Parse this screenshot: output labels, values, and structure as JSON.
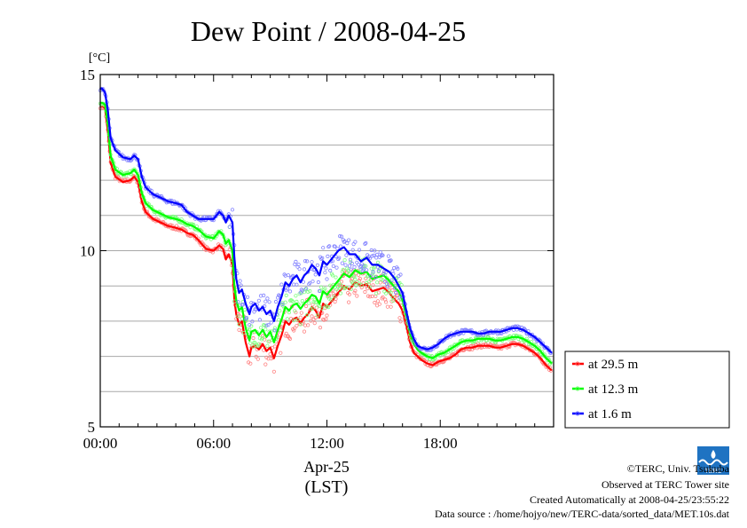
{
  "chart_data": {
    "type": "line",
    "title": "Dew Point / 2008-04-25",
    "ylabel": "[°C]",
    "xlabel_date": "Apr-25",
    "xlabel_tz": "(LST)",
    "ylim": [
      5,
      15
    ],
    "xlim": [
      0,
      24
    ],
    "y_ticks": [
      5,
      10,
      15
    ],
    "y_tick_labels": [
      "5",
      "10",
      "15"
    ],
    "y_grid": [
      6,
      7,
      8,
      9,
      11,
      12,
      13,
      14
    ],
    "x_ticks": [
      0,
      6,
      12,
      18
    ],
    "x_tick_labels": [
      "00:00",
      "06:00",
      "12:00",
      "18:00"
    ],
    "grid": true,
    "legend_position": "right",
    "series": [
      {
        "name": "at 29.5 m",
        "color": "#ff0000",
        "x": [
          0,
          0.1,
          0.25,
          0.4,
          0.55,
          0.8,
          1.2,
          1.6,
          1.8,
          2.0,
          2.2,
          2.4,
          2.8,
          3.2,
          3.6,
          4.0,
          4.3,
          4.6,
          4.9,
          5.2,
          5.6,
          6.0,
          6.3,
          6.5,
          6.65,
          6.8,
          6.9,
          7.0,
          7.1,
          7.2,
          7.35,
          7.5,
          7.7,
          7.9,
          8.0,
          8.2,
          8.4,
          8.6,
          8.8,
          9.0,
          9.2,
          9.4,
          9.6,
          9.8,
          10.0,
          10.2,
          10.4,
          10.6,
          10.8,
          11.0,
          11.2,
          11.4,
          11.6,
          11.8,
          12.0,
          12.3,
          12.6,
          12.9,
          13.2,
          13.5,
          13.8,
          14.1,
          14.4,
          14.7,
          15.0,
          15.3,
          15.6,
          15.8,
          16.0,
          16.2,
          16.4,
          16.6,
          16.8,
          17.0,
          17.3,
          17.6,
          17.9,
          18.2,
          18.5,
          18.8,
          19.1,
          19.4,
          19.7,
          20.0,
          20.3,
          20.6,
          20.9,
          21.2,
          21.5,
          21.8,
          22.1,
          22.4,
          22.7,
          23.0,
          23.3,
          23.6,
          23.9
        ],
        "values": [
          14.1,
          14.1,
          14.05,
          13.4,
          12.5,
          12.1,
          11.95,
          12.0,
          12.1,
          11.95,
          11.4,
          11.1,
          10.9,
          10.8,
          10.7,
          10.65,
          10.6,
          10.5,
          10.45,
          10.3,
          10.05,
          10.0,
          10.15,
          10.05,
          9.75,
          9.9,
          9.75,
          9.6,
          8.6,
          8.2,
          7.9,
          8.0,
          7.4,
          7.0,
          7.25,
          7.3,
          7.2,
          7.35,
          7.15,
          7.25,
          6.95,
          7.3,
          7.6,
          8.0,
          7.9,
          8.05,
          8.1,
          7.95,
          8.1,
          8.2,
          8.4,
          8.3,
          8.1,
          8.5,
          8.4,
          8.6,
          8.8,
          9.0,
          8.9,
          9.1,
          9.0,
          9.05,
          8.85,
          8.9,
          8.95,
          8.8,
          8.6,
          8.5,
          8.3,
          7.9,
          7.4,
          7.1,
          7.0,
          6.9,
          6.8,
          6.75,
          6.85,
          6.9,
          6.95,
          7.05,
          7.2,
          7.25,
          7.25,
          7.3,
          7.3,
          7.3,
          7.25,
          7.25,
          7.3,
          7.35,
          7.35,
          7.3,
          7.2,
          7.1,
          6.95,
          6.75,
          6.6
        ]
      },
      {
        "name": "at 12.3 m",
        "color": "#00ff00",
        "x": [
          0,
          0.1,
          0.25,
          0.4,
          0.55,
          0.8,
          1.2,
          1.6,
          1.8,
          2.0,
          2.2,
          2.4,
          2.8,
          3.2,
          3.6,
          4.0,
          4.3,
          4.6,
          4.9,
          5.2,
          5.6,
          6.0,
          6.3,
          6.5,
          6.65,
          6.8,
          6.9,
          7.0,
          7.1,
          7.2,
          7.35,
          7.5,
          7.7,
          7.9,
          8.0,
          8.2,
          8.4,
          8.6,
          8.8,
          9.0,
          9.2,
          9.4,
          9.6,
          9.8,
          10.0,
          10.2,
          10.4,
          10.6,
          10.8,
          11.0,
          11.2,
          11.4,
          11.6,
          11.8,
          12.0,
          12.3,
          12.6,
          12.9,
          13.2,
          13.5,
          13.8,
          14.1,
          14.4,
          14.7,
          15.0,
          15.3,
          15.6,
          15.8,
          16.0,
          16.2,
          16.4,
          16.6,
          16.8,
          17.0,
          17.3,
          17.6,
          17.9,
          18.2,
          18.5,
          18.8,
          19.1,
          19.4,
          19.7,
          20.0,
          20.3,
          20.6,
          20.9,
          21.2,
          21.5,
          21.8,
          22.1,
          22.4,
          22.7,
          23.0,
          23.3,
          23.6,
          23.9
        ],
        "values": [
          14.2,
          14.2,
          14.15,
          13.6,
          12.7,
          12.3,
          12.15,
          12.2,
          12.3,
          12.15,
          11.65,
          11.35,
          11.15,
          11.05,
          10.95,
          10.9,
          10.85,
          10.75,
          10.7,
          10.6,
          10.4,
          10.35,
          10.55,
          10.45,
          10.2,
          10.3,
          10.15,
          10.0,
          9.0,
          8.6,
          8.3,
          8.4,
          7.8,
          7.45,
          7.7,
          7.75,
          7.6,
          7.75,
          7.55,
          7.7,
          7.4,
          7.75,
          8.05,
          8.4,
          8.3,
          8.45,
          8.5,
          8.35,
          8.5,
          8.6,
          8.75,
          8.7,
          8.5,
          8.85,
          8.75,
          8.95,
          9.15,
          9.35,
          9.25,
          9.45,
          9.35,
          9.4,
          9.2,
          9.25,
          9.3,
          9.15,
          8.95,
          8.85,
          8.6,
          8.15,
          7.65,
          7.35,
          7.2,
          7.1,
          7.0,
          6.95,
          7.05,
          7.1,
          7.2,
          7.3,
          7.4,
          7.45,
          7.45,
          7.5,
          7.5,
          7.5,
          7.45,
          7.45,
          7.5,
          7.55,
          7.55,
          7.5,
          7.4,
          7.3,
          7.15,
          6.95,
          6.8
        ]
      },
      {
        "name": "at 1.6 m",
        "color": "#0000ff",
        "x": [
          0,
          0.1,
          0.25,
          0.4,
          0.55,
          0.8,
          1.2,
          1.6,
          1.8,
          2.0,
          2.2,
          2.4,
          2.8,
          3.2,
          3.6,
          4.0,
          4.3,
          4.6,
          4.9,
          5.2,
          5.6,
          6.0,
          6.3,
          6.5,
          6.65,
          6.8,
          6.9,
          7.0,
          7.1,
          7.2,
          7.35,
          7.5,
          7.7,
          7.9,
          8.0,
          8.2,
          8.4,
          8.6,
          8.8,
          9.0,
          9.2,
          9.4,
          9.6,
          9.8,
          10.0,
          10.2,
          10.4,
          10.6,
          10.8,
          11.0,
          11.2,
          11.4,
          11.6,
          11.8,
          12.0,
          12.3,
          12.6,
          12.9,
          13.2,
          13.5,
          13.8,
          14.1,
          14.4,
          14.7,
          15.0,
          15.3,
          15.6,
          15.8,
          16.0,
          16.2,
          16.4,
          16.6,
          16.8,
          17.0,
          17.3,
          17.6,
          17.9,
          18.2,
          18.5,
          18.8,
          19.1,
          19.4,
          19.7,
          20.0,
          20.3,
          20.6,
          20.9,
          21.2,
          21.5,
          21.8,
          22.1,
          22.4,
          22.7,
          23.0,
          23.3,
          23.6,
          23.9
        ],
        "values": [
          14.6,
          14.6,
          14.5,
          14.0,
          13.2,
          12.85,
          12.65,
          12.6,
          12.7,
          12.6,
          12.1,
          11.8,
          11.6,
          11.5,
          11.4,
          11.35,
          11.3,
          11.1,
          11.0,
          10.9,
          10.9,
          10.9,
          11.1,
          11.0,
          10.8,
          11.0,
          10.9,
          10.8,
          9.8,
          9.2,
          8.8,
          8.9,
          8.5,
          8.2,
          8.4,
          8.5,
          8.3,
          8.4,
          8.2,
          8.3,
          8.0,
          8.4,
          8.7,
          9.1,
          9.0,
          9.2,
          9.3,
          9.1,
          9.3,
          9.4,
          9.6,
          9.5,
          9.3,
          9.7,
          9.6,
          9.8,
          10.0,
          10.1,
          9.9,
          9.9,
          9.7,
          9.8,
          9.6,
          9.6,
          9.5,
          9.4,
          9.2,
          9.0,
          8.8,
          8.3,
          7.8,
          7.5,
          7.3,
          7.25,
          7.2,
          7.25,
          7.35,
          7.5,
          7.6,
          7.65,
          7.7,
          7.7,
          7.7,
          7.65,
          7.65,
          7.7,
          7.7,
          7.7,
          7.75,
          7.8,
          7.8,
          7.75,
          7.65,
          7.55,
          7.4,
          7.25,
          7.1
        ]
      }
    ]
  },
  "credits": {
    "copyright": "©TERC, Univ. Tsukuba",
    "observed": "Observed at TERC Tower site",
    "created": "Created Automatically at 2008-04-25/23:55:22",
    "source": "Data source : /home/hojyo/new/TERC-data/sorted_data/MET.10s.dat",
    "logo_text": "TERC"
  }
}
